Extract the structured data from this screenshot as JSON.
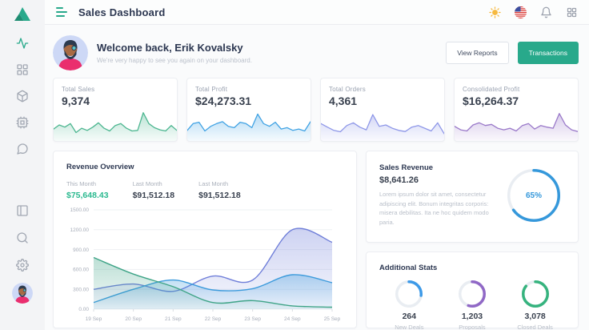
{
  "colors": {
    "accent": "#28a98b",
    "navy": "#2c3751",
    "muted": "#9ba1ad"
  },
  "app": {
    "title": "Sales Dashboard"
  },
  "welcome": {
    "title": "Welcome back, Erik Kovalsky",
    "subtitle": "We're very happy to see you again on your dashboard.",
    "view_reports_label": "View Reports",
    "transactions_label": "Transactions"
  },
  "stat_cards": [
    {
      "label": "Total Sales",
      "value": "9,374",
      "color": "#4cb690",
      "spark": [
        35,
        50,
        42,
        55,
        22,
        38,
        30,
        42,
        58,
        38,
        28,
        48,
        55,
        38,
        28,
        30,
        95,
        55,
        40,
        32,
        28,
        48,
        30
      ]
    },
    {
      "label": "Total Profit",
      "value": "$24,273.31",
      "color": "#41a3e4",
      "spark": [
        30,
        55,
        60,
        28,
        45,
        55,
        62,
        45,
        40,
        60,
        55,
        40,
        90,
        55,
        45,
        60,
        35,
        40,
        30,
        35,
        28,
        62
      ]
    },
    {
      "label": "Total Orders",
      "value": "4,361",
      "color": "#8e97e8",
      "spark": [
        55,
        42,
        30,
        25,
        48,
        58,
        42,
        32,
        88,
        45,
        50,
        38,
        30,
        26,
        42,
        48,
        38,
        28,
        58,
        18
      ]
    },
    {
      "label": "Consolidated Profit",
      "value": "$16,264.37",
      "color": "#9a79c9",
      "spark": [
        45,
        32,
        28,
        50,
        58,
        48,
        52,
        38,
        32,
        38,
        28,
        48,
        55,
        35,
        48,
        42,
        38,
        92,
        50,
        32,
        26
      ]
    }
  ],
  "revenue_overview": {
    "title": "Revenue Overview",
    "stats": [
      {
        "label": "This Month",
        "value": "$75,648.43"
      },
      {
        "label": "Last Month",
        "value": "$91,512.18"
      },
      {
        "label": "Last Month",
        "value": "$91,512.18"
      }
    ]
  },
  "chart_data": {
    "type": "area",
    "title": "Revenue Overview",
    "categories": [
      "19 Sep",
      "20 Sep",
      "21 Sep",
      "22 Sep",
      "23 Sep",
      "24 Sep",
      "25 Sep"
    ],
    "series": [
      {
        "name": "This Month",
        "color": "#3fa487",
        "values": [
          780,
          530,
          340,
          100,
          130,
          50,
          30
        ]
      },
      {
        "name": "Last Month",
        "color": "#3d9bdc",
        "values": [
          100,
          300,
          440,
          290,
          310,
          520,
          400
        ]
      },
      {
        "name": "Last Month",
        "color": "#707fd9",
        "values": [
          300,
          380,
          270,
          500,
          440,
          1200,
          1010
        ]
      }
    ],
    "ylim": [
      0,
      1500
    ],
    "yticks": [
      "0.00",
      "300.00",
      "600.00",
      "900.00",
      "1200.00",
      "1500.00"
    ],
    "grid": true,
    "legend": false
  },
  "sales_revenue": {
    "title": "Sales Revenue",
    "value": "$8,641.26",
    "description": "Lorem ipsum dolor sit amet, consectetur adipiscing elit. Bonum integritas corporis: misera debilitas. Ita ne hoc quidem modo paria.",
    "percent": 65,
    "percent_label": "65%",
    "color": "#3598db"
  },
  "additional_stats": {
    "title": "Additional Stats",
    "items": [
      {
        "value": "264",
        "label": "New Deals",
        "percent": 27,
        "color": "#3d9ae8"
      },
      {
        "value": "1,203",
        "label": "Proposals",
        "percent": 55,
        "color": "#9068c6"
      },
      {
        "value": "3,078",
        "label": "Closed Deals",
        "percent": 86,
        "color": "#36b37e"
      }
    ]
  }
}
